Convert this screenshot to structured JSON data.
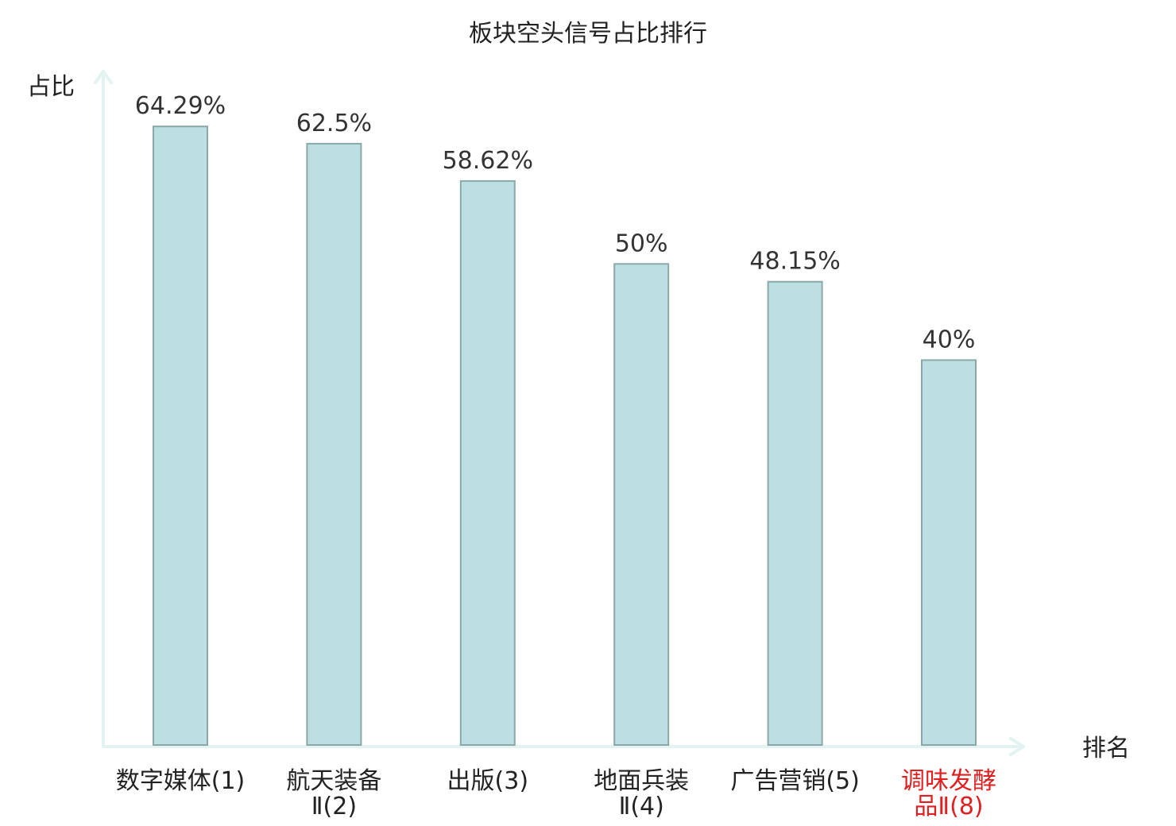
{
  "chart_data": {
    "type": "bar",
    "title": "板块空头信号占比排行",
    "ylabel": "占比",
    "xlabel": "排名",
    "ylim": [
      0,
      70
    ],
    "categories": [
      [
        "数字媒体(1)"
      ],
      [
        "航天装备",
        "Ⅱ(2)"
      ],
      [
        "出版(3)"
      ],
      [
        "地面兵装",
        "Ⅱ(4)"
      ],
      [
        "广告营销(5)"
      ],
      [
        "调味发酵",
        "品Ⅱ(8)"
      ]
    ],
    "values": [
      64.29,
      62.5,
      58.62,
      50,
      48.15,
      40
    ],
    "value_labels": [
      "64.29%",
      "62.5%",
      "58.62%",
      "50%",
      "48.15%",
      "40%"
    ],
    "highlight_index": 5,
    "colors": {
      "bar_fill": "#bce0e2",
      "bar_stroke": "#8aa8aa",
      "axis": "#e2f3f1",
      "highlight_text": "#e02020"
    },
    "grid": false
  }
}
